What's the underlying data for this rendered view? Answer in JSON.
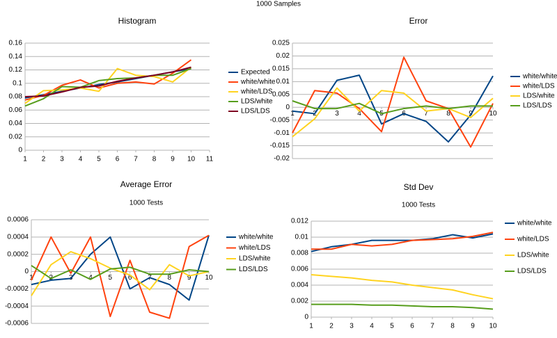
{
  "title": "1000 Samples",
  "chart_data": [
    {
      "type": "line",
      "title": "Histogram",
      "x": [
        1,
        2,
        3,
        4,
        5,
        6,
        7,
        8,
        9,
        10
      ],
      "xlim": [
        1,
        11
      ],
      "xticks": [
        1,
        2,
        3,
        4,
        5,
        6,
        7,
        8,
        9,
        10,
        11
      ],
      "ylim": [
        0,
        0.16
      ],
      "yticks": [
        0,
        0.02,
        0.04,
        0.06,
        0.08,
        0.1,
        0.12,
        0.14,
        0.16
      ],
      "grid": true,
      "series": [
        {
          "name": "Expected",
          "color": "#004586",
          "values": [
            0.078,
            0.083,
            0.088,
            0.093,
            0.098,
            0.102,
            0.107,
            0.112,
            0.117,
            0.122
          ]
        },
        {
          "name": "white/white",
          "color": "#ff420e",
          "values": [
            0.075,
            0.082,
            0.097,
            0.105,
            0.093,
            0.1,
            0.102,
            0.099,
            0.115,
            0.135
          ]
        },
        {
          "name": "white/LDS",
          "color": "#ffd320",
          "values": [
            0.07,
            0.089,
            0.09,
            0.093,
            0.088,
            0.122,
            0.112,
            0.11,
            0.102,
            0.124
          ]
        },
        {
          "name": "LDS/white",
          "color": "#579d1c",
          "values": [
            0.066,
            0.077,
            0.095,
            0.094,
            0.104,
            0.107,
            0.108,
            0.112,
            0.112,
            0.122
          ]
        },
        {
          "name": "LDS/LDS",
          "color": "#7e0021",
          "values": [
            0.08,
            0.081,
            0.087,
            0.094,
            0.096,
            0.103,
            0.108,
            0.112,
            0.117,
            0.124
          ]
        }
      ]
    },
    {
      "type": "line",
      "title": "Error",
      "x": [
        1,
        2,
        3,
        4,
        5,
        6,
        7,
        8,
        9,
        10
      ],
      "xlim": [
        1,
        10
      ],
      "xticks": [
        1,
        2,
        3,
        4,
        5,
        6,
        7,
        8,
        9,
        10
      ],
      "ylim": [
        -0.02,
        0.025
      ],
      "yticks": [
        -0.02,
        -0.015,
        -0.01,
        -0.005,
        0,
        0.005,
        0.01,
        0.015,
        0.02,
        0.025
      ],
      "grid": true,
      "series": [
        {
          "name": "white/white",
          "color": "#004586",
          "values": [
            -0.0015,
            -0.0025,
            0.0105,
            0.0125,
            -0.0065,
            -0.0025,
            -0.0055,
            -0.0135,
            -0.003,
            0.0122
          ]
        },
        {
          "name": "white/LDS",
          "color": "#ff420e",
          "values": [
            -0.01,
            0.0065,
            0.0055,
            -0.0005,
            -0.0095,
            0.0195,
            0.0025,
            -0.0005,
            -0.0155,
            0.0015
          ]
        },
        {
          "name": "LDS/white",
          "color": "#ffd320",
          "values": [
            -0.0115,
            -0.0045,
            0.0075,
            -0.0015,
            0.0065,
            0.0055,
            -0.0015,
            -0.0005,
            -0.004,
            0.0035
          ]
        },
        {
          "name": "LDS/LDS",
          "color": "#579d1c",
          "values": [
            0.0025,
            -0.0005,
            -0.0005,
            0.0015,
            -0.0025,
            -0.0005,
            0.0005,
            -0.0005,
            0.0005,
            0.0005
          ]
        }
      ]
    },
    {
      "type": "line",
      "title": "Average Error",
      "subtitle": "1000 Tests",
      "x": [
        1,
        2,
        3,
        4,
        5,
        6,
        7,
        8,
        9,
        10
      ],
      "xlim": [
        1,
        10
      ],
      "xticks": [
        1,
        2,
        3,
        4,
        5,
        6,
        7,
        8,
        9,
        10
      ],
      "ylim": [
        -0.0006,
        0.0006
      ],
      "yticks": [
        -0.0006,
        -0.0004,
        -0.0002,
        0,
        0.0002,
        0.0004,
        0.0006
      ],
      "grid": true,
      "series": [
        {
          "name": "white/white",
          "color": "#004586",
          "values": [
            -0.00015,
            -0.0001,
            -8e-05,
            0.0002,
            0.0004,
            -0.0002,
            -7e-05,
            -0.00015,
            -0.00033,
            0.00042
          ]
        },
        {
          "name": "white/LDS",
          "color": "#ff420e",
          "values": [
            -0.0001,
            0.0004,
            -2e-05,
            0.0004,
            -0.00052,
            0.00013,
            -0.00047,
            -0.00054,
            0.00029,
            0.00042
          ]
        },
        {
          "name": "LDS/white",
          "color": "#ffd320",
          "values": [
            -0.00028,
            8e-05,
            0.00023,
            0.00015,
            4e-05,
            -4e-05,
            -0.00021,
            8e-05,
            -5e-05,
            0
          ]
        },
        {
          "name": "LDS/LDS",
          "color": "#579d1c",
          "values": [
            7e-05,
            -8e-05,
            2e-05,
            -9e-05,
            3e-05,
            5e-05,
            -3e-05,
            -3e-05,
            2e-05,
            0
          ]
        }
      ]
    },
    {
      "type": "line",
      "title": "Std Dev",
      "subtitle": "1000 Tests",
      "x": [
        1,
        2,
        3,
        4,
        5,
        6,
        7,
        8,
        9,
        10
      ],
      "xlim": [
        1,
        10
      ],
      "xticks": [
        1,
        2,
        3,
        4,
        5,
        6,
        7,
        8,
        9,
        10
      ],
      "ylim": [
        0,
        0.012
      ],
      "yticks": [
        0,
        0.002,
        0.004,
        0.006,
        0.008,
        0.01,
        0.012
      ],
      "grid": true,
      "series": [
        {
          "name": "white/white",
          "color": "#004586",
          "values": [
            0.0082,
            0.0088,
            0.0091,
            0.0096,
            0.0096,
            0.0096,
            0.0098,
            0.0103,
            0.0099,
            0.0104
          ]
        },
        {
          "name": "white/LDS",
          "color": "#ff420e",
          "values": [
            0.0085,
            0.0085,
            0.0091,
            0.0089,
            0.0091,
            0.0096,
            0.0097,
            0.0098,
            0.0101,
            0.0106
          ]
        },
        {
          "name": "LDS/white",
          "color": "#ffd320",
          "values": [
            0.0053,
            0.0051,
            0.0049,
            0.0046,
            0.0044,
            0.004,
            0.0037,
            0.0034,
            0.0028,
            0.0023
          ]
        },
        {
          "name": "LDS/LDS",
          "color": "#579d1c",
          "values": [
            0.0016,
            0.0016,
            0.0016,
            0.0015,
            0.0015,
            0.0014,
            0.0013,
            0.0013,
            0.0012,
            0.001
          ]
        }
      ]
    }
  ]
}
